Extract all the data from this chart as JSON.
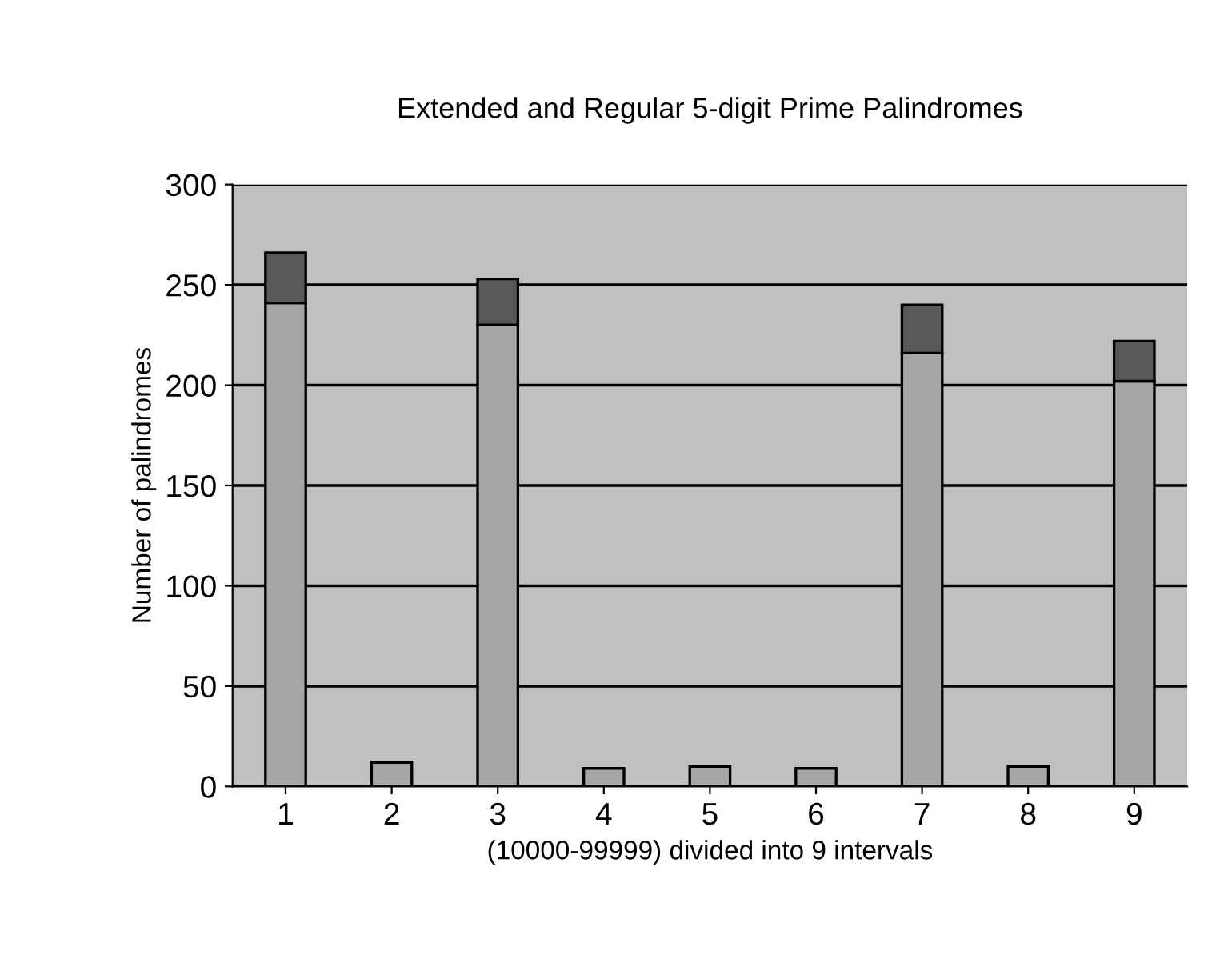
{
  "chart_data": {
    "type": "bar",
    "title": "Extended and Regular 5-digit Prime Palindromes",
    "xlabel": "(10000-99999) divided into 9 intervals",
    "ylabel": "Number of palindromes",
    "categories": [
      "1",
      "2",
      "3",
      "4",
      "5",
      "6",
      "7",
      "8",
      "9"
    ],
    "stacked": true,
    "series": [
      {
        "color": "#a6a6a6",
        "values": [
          241,
          12,
          230,
          9,
          10,
          9,
          216,
          10,
          202
        ]
      },
      {
        "color": "#595959",
        "values": [
          25,
          null,
          23,
          null,
          null,
          null,
          24,
          null,
          20
        ]
      }
    ],
    "ylim": [
      0,
      300
    ],
    "yticks": [
      0,
      50,
      100,
      150,
      200,
      250,
      300
    ],
    "grid": "y"
  }
}
